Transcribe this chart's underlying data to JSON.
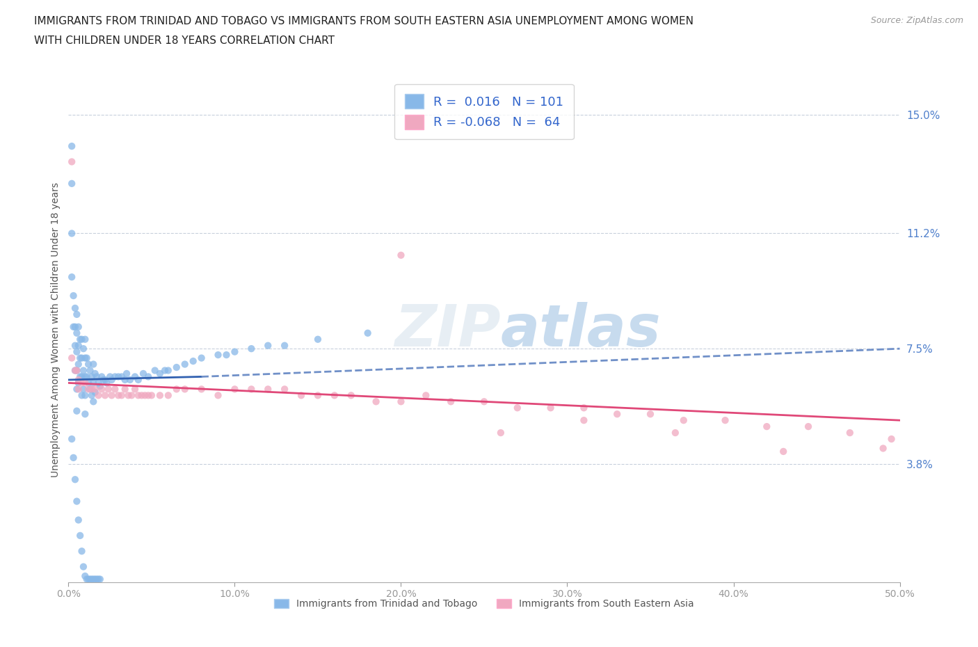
{
  "title_line1": "IMMIGRANTS FROM TRINIDAD AND TOBAGO VS IMMIGRANTS FROM SOUTH EASTERN ASIA UNEMPLOYMENT AMONG WOMEN",
  "title_line2": "WITH CHILDREN UNDER 18 YEARS CORRELATION CHART",
  "source": "Source: ZipAtlas.com",
  "ylabel": "Unemployment Among Women with Children Under 18 years",
  "xlim": [
    0.0,
    0.5
  ],
  "ylim": [
    0.0,
    0.162
  ],
  "xticks": [
    0.0,
    0.1,
    0.2,
    0.3,
    0.4,
    0.5
  ],
  "xticklabels": [
    "0.0%",
    "10.0%",
    "20.0%",
    "30.0%",
    "40.0%",
    "50.0%"
  ],
  "ytick_labels_right": [
    "15.0%",
    "11.2%",
    "7.5%",
    "3.8%"
  ],
  "ytick_vals_right": [
    0.15,
    0.112,
    0.075,
    0.038
  ],
  "grid_color": "#c8d0dc",
  "background_color": "#ffffff",
  "blue_R": 0.016,
  "blue_N": 101,
  "pink_R": -0.068,
  "pink_N": 64,
  "legend_label_blue": "Immigrants from Trinidad and Tobago",
  "legend_label_pink": "Immigrants from South Eastern Asia",
  "scatter_blue_color": "#88b8e8",
  "scatter_pink_color": "#f0a8c0",
  "line_blue_solid_color": "#3060b0",
  "line_blue_dash_color": "#7090c8",
  "line_pink_color": "#e04878",
  "blue_x": [
    0.002,
    0.002,
    0.002,
    0.002,
    0.003,
    0.003,
    0.004,
    0.004,
    0.004,
    0.004,
    0.005,
    0.005,
    0.005,
    0.005,
    0.005,
    0.005,
    0.006,
    0.006,
    0.006,
    0.006,
    0.007,
    0.007,
    0.007,
    0.008,
    0.008,
    0.008,
    0.008,
    0.009,
    0.009,
    0.009,
    0.01,
    0.01,
    0.01,
    0.01,
    0.01,
    0.011,
    0.011,
    0.012,
    0.012,
    0.013,
    0.013,
    0.014,
    0.014,
    0.015,
    0.015,
    0.015,
    0.016,
    0.016,
    0.017,
    0.018,
    0.019,
    0.02,
    0.021,
    0.022,
    0.023,
    0.025,
    0.026,
    0.028,
    0.03,
    0.032,
    0.034,
    0.035,
    0.037,
    0.04,
    0.042,
    0.045,
    0.048,
    0.052,
    0.055,
    0.058,
    0.06,
    0.065,
    0.07,
    0.075,
    0.08,
    0.09,
    0.095,
    0.1,
    0.11,
    0.12,
    0.13,
    0.15,
    0.18,
    0.002,
    0.003,
    0.004,
    0.005,
    0.006,
    0.007,
    0.008,
    0.009,
    0.01,
    0.011,
    0.012,
    0.013,
    0.014,
    0.015,
    0.016,
    0.017,
    0.018,
    0.019
  ],
  "blue_y": [
    0.14,
    0.128,
    0.112,
    0.098,
    0.092,
    0.082,
    0.088,
    0.082,
    0.076,
    0.068,
    0.086,
    0.08,
    0.074,
    0.068,
    0.062,
    0.055,
    0.082,
    0.076,
    0.07,
    0.064,
    0.078,
    0.072,
    0.066,
    0.078,
    0.072,
    0.066,
    0.06,
    0.075,
    0.068,
    0.062,
    0.078,
    0.072,
    0.066,
    0.06,
    0.054,
    0.072,
    0.066,
    0.07,
    0.064,
    0.068,
    0.062,
    0.066,
    0.06,
    0.07,
    0.064,
    0.058,
    0.067,
    0.061,
    0.066,
    0.064,
    0.063,
    0.066,
    0.065,
    0.065,
    0.064,
    0.066,
    0.065,
    0.066,
    0.066,
    0.066,
    0.065,
    0.067,
    0.065,
    0.066,
    0.065,
    0.067,
    0.066,
    0.068,
    0.067,
    0.068,
    0.068,
    0.069,
    0.07,
    0.071,
    0.072,
    0.073,
    0.073,
    0.074,
    0.075,
    0.076,
    0.076,
    0.078,
    0.08,
    0.046,
    0.04,
    0.033,
    0.026,
    0.02,
    0.015,
    0.01,
    0.005,
    0.002,
    0.001,
    0.001,
    0.001,
    0.001,
    0.001,
    0.001,
    0.001,
    0.001,
    0.001
  ],
  "pink_x": [
    0.002,
    0.002,
    0.004,
    0.005,
    0.006,
    0.006,
    0.008,
    0.01,
    0.012,
    0.014,
    0.016,
    0.018,
    0.02,
    0.022,
    0.024,
    0.026,
    0.028,
    0.03,
    0.032,
    0.034,
    0.036,
    0.038,
    0.04,
    0.042,
    0.044,
    0.046,
    0.048,
    0.05,
    0.055,
    0.06,
    0.065,
    0.07,
    0.08,
    0.09,
    0.1,
    0.11,
    0.12,
    0.13,
    0.14,
    0.15,
    0.16,
    0.17,
    0.185,
    0.2,
    0.215,
    0.23,
    0.25,
    0.27,
    0.29,
    0.31,
    0.33,
    0.35,
    0.37,
    0.395,
    0.42,
    0.445,
    0.47,
    0.495,
    0.2,
    0.26,
    0.31,
    0.365,
    0.43,
    0.49
  ],
  "pink_y": [
    0.135,
    0.072,
    0.068,
    0.068,
    0.065,
    0.062,
    0.064,
    0.064,
    0.062,
    0.062,
    0.062,
    0.06,
    0.062,
    0.06,
    0.062,
    0.06,
    0.062,
    0.06,
    0.06,
    0.062,
    0.06,
    0.06,
    0.062,
    0.06,
    0.06,
    0.06,
    0.06,
    0.06,
    0.06,
    0.06,
    0.062,
    0.062,
    0.062,
    0.06,
    0.062,
    0.062,
    0.062,
    0.062,
    0.06,
    0.06,
    0.06,
    0.06,
    0.058,
    0.058,
    0.06,
    0.058,
    0.058,
    0.056,
    0.056,
    0.056,
    0.054,
    0.054,
    0.052,
    0.052,
    0.05,
    0.05,
    0.048,
    0.046,
    0.105,
    0.048,
    0.052,
    0.048,
    0.042,
    0.043
  ],
  "blue_line_start": 0.0,
  "blue_line_mid": 0.08,
  "blue_line_end": 0.5,
  "blue_line_y_start": 0.065,
  "blue_line_y_mid": 0.066,
  "blue_line_y_end": 0.075,
  "pink_line_start": 0.0,
  "pink_line_end": 0.5,
  "pink_line_y_start": 0.064,
  "pink_line_y_end": 0.052
}
